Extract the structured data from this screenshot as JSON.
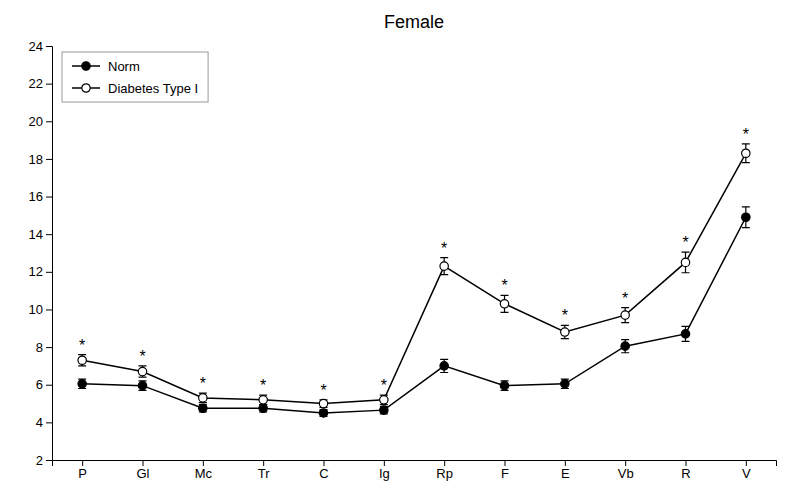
{
  "chart_data": {
    "type": "line",
    "title": "Female",
    "categories": [
      "P",
      "Gl",
      "Mc",
      "Tr",
      "C",
      "Ig",
      "Rp",
      "F",
      "E",
      "Vb",
      "R",
      "V"
    ],
    "series": [
      {
        "name": "Norm",
        "color": "#000000",
        "marker": "circle",
        "values": [
          6.05,
          5.95,
          4.75,
          4.75,
          4.5,
          4.65,
          7.0,
          5.95,
          6.05,
          8.05,
          8.7,
          14.9
        ],
        "errors": [
          0.25,
          0.25,
          0.2,
          0.2,
          0.18,
          0.2,
          0.35,
          0.25,
          0.25,
          0.35,
          0.4,
          0.55
        ]
      },
      {
        "name": "Diabetes Type I",
        "color": "#000000",
        "marker": "circle-open",
        "values": [
          7.3,
          6.7,
          5.3,
          5.2,
          5.0,
          5.2,
          12.3,
          10.3,
          8.8,
          9.7,
          12.5,
          18.3
        ],
        "errors": [
          0.3,
          0.3,
          0.25,
          0.25,
          0.2,
          0.25,
          0.45,
          0.45,
          0.35,
          0.4,
          0.55,
          0.5
        ],
        "annotations": [
          "*",
          "*",
          "*",
          "*",
          "*",
          "*",
          "*",
          "*",
          "*",
          "*",
          "*",
          "*"
        ]
      }
    ],
    "ylim": [
      2,
      24
    ],
    "yticks": [
      2,
      4,
      6,
      8,
      10,
      12,
      14,
      16,
      18,
      20,
      22,
      24
    ],
    "grid": false,
    "legend": "upper left"
  }
}
